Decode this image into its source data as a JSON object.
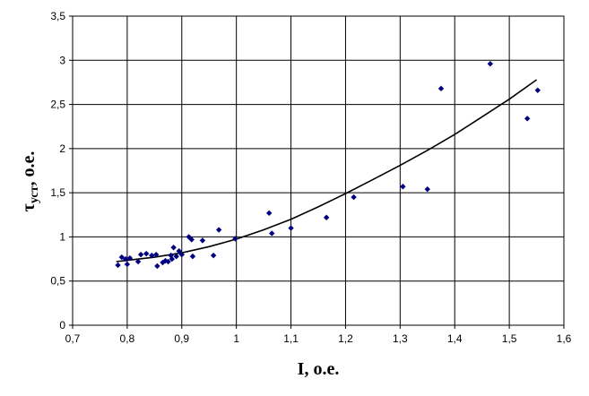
{
  "chart_data": {
    "type": "scatter",
    "title": "",
    "xlabel": "I, о.е.",
    "ylabel_main": "τ",
    "ylabel_sub": "уст",
    "ylabel_suffix": ", о.е.",
    "xlim": [
      0.7,
      1.6
    ],
    "ylim": [
      0,
      3.5
    ],
    "xticks": [
      0.7,
      0.8,
      0.9,
      1.0,
      1.1,
      1.2,
      1.3,
      1.4,
      1.5,
      1.6
    ],
    "xtick_labels": [
      "0,7",
      "0,8",
      "0,9",
      "1",
      "1,1",
      "1,2",
      "1,3",
      "1,4",
      "1,5",
      "1,6"
    ],
    "yticks": [
      0,
      0.5,
      1,
      1.5,
      2,
      2.5,
      3,
      3.5
    ],
    "ytick_labels": [
      "0",
      "0,5",
      "1",
      "1,5",
      "2",
      "2,5",
      "3",
      "3,5"
    ],
    "grid": true,
    "legend": "none",
    "marker_color": "#000080",
    "trend_color": "#000000",
    "series": [
      {
        "points": [
          [
            0.783,
            0.68
          ],
          [
            0.79,
            0.77
          ],
          [
            0.797,
            0.75
          ],
          [
            0.8,
            0.69
          ],
          [
            0.805,
            0.76
          ],
          [
            0.82,
            0.72
          ],
          [
            0.825,
            0.8
          ],
          [
            0.835,
            0.81
          ],
          [
            0.845,
            0.79
          ],
          [
            0.853,
            0.8
          ],
          [
            0.855,
            0.67
          ],
          [
            0.865,
            0.71
          ],
          [
            0.87,
            0.73
          ],
          [
            0.875,
            0.72
          ],
          [
            0.88,
            0.79
          ],
          [
            0.882,
            0.75
          ],
          [
            0.885,
            0.88
          ],
          [
            0.89,
            0.78
          ],
          [
            0.895,
            0.84
          ],
          [
            0.9,
            0.8
          ],
          [
            0.913,
            1.0
          ],
          [
            0.918,
            0.97
          ],
          [
            0.92,
            0.78
          ],
          [
            0.938,
            0.96
          ],
          [
            0.958,
            0.79
          ],
          [
            0.968,
            1.08
          ],
          [
            0.998,
            0.98
          ],
          [
            1.06,
            1.27
          ],
          [
            1.065,
            1.04
          ],
          [
            1.1,
            1.1
          ],
          [
            1.165,
            1.22
          ],
          [
            1.215,
            1.45
          ],
          [
            1.305,
            1.57
          ],
          [
            1.35,
            1.54
          ],
          [
            1.375,
            2.68
          ],
          [
            1.465,
            2.96
          ],
          [
            1.533,
            2.34
          ],
          [
            1.552,
            2.66
          ]
        ]
      }
    ],
    "trendline": [
      [
        0.78,
        0.72
      ],
      [
        0.8,
        0.735
      ],
      [
        0.85,
        0.77
      ],
      [
        0.9,
        0.82
      ],
      [
        0.95,
        0.89
      ],
      [
        1.0,
        0.975
      ],
      [
        1.05,
        1.08
      ],
      [
        1.1,
        1.2
      ],
      [
        1.15,
        1.34
      ],
      [
        1.2,
        1.49
      ],
      [
        1.25,
        1.65
      ],
      [
        1.3,
        1.81
      ],
      [
        1.35,
        1.98
      ],
      [
        1.4,
        2.16
      ],
      [
        1.45,
        2.36
      ],
      [
        1.5,
        2.56
      ],
      [
        1.55,
        2.78
      ]
    ]
  }
}
